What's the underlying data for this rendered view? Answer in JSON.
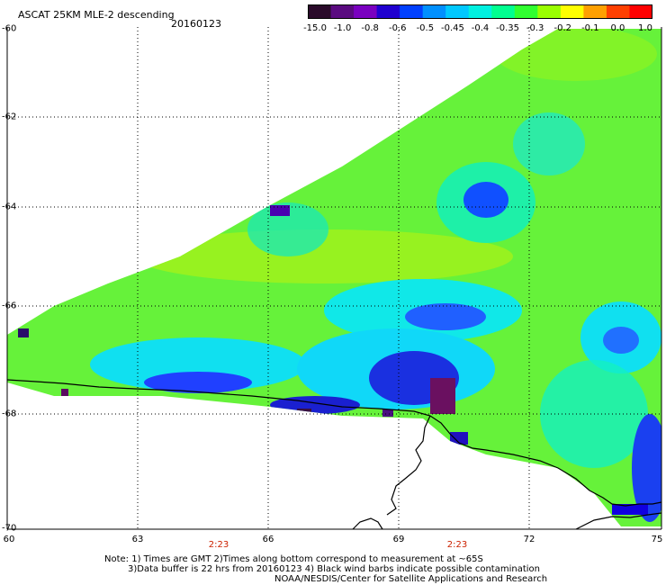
{
  "header": {
    "title": "ASCAT 25KM MLE-2 descending",
    "date": "20160123"
  },
  "colorbar": {
    "labels": [
      "-15.0",
      "-1.0",
      "-0.8",
      "-0.6",
      "-0.5",
      "-0.45",
      "-0.4",
      "-0.35",
      "-0.3",
      "-0.2",
      "-0.1",
      "0.0",
      "1.0"
    ],
    "colors": [
      "#2a0a2a",
      "#5a0a80",
      "#7a00c0",
      "#2000d0",
      "#0040ff",
      "#0090ff",
      "#00c8ff",
      "#00f0e0",
      "#00ff90",
      "#30ff30",
      "#9aff00",
      "#ffff00",
      "#ffa000",
      "#ff4000",
      "#ff0000"
    ]
  },
  "axes": {
    "lat_labels": [
      "-60",
      "-62",
      "-64",
      "-66",
      "-68",
      "-70"
    ],
    "lon_labels": [
      "60",
      "63",
      "66",
      "69",
      "72",
      "75"
    ]
  },
  "time_labels": [
    "2:23",
    "2:23"
  ],
  "notes": {
    "line1": "Note: 1) Times are GMT 2)Times along bottom correspond to measurement at ~65S",
    "line2": "3)Data buffer is 22 hrs from 20160123 4) Black wind barbs indicate possible contamination",
    "line3": "NOAA/NESDIS/Center for Satellite Applications and Research"
  }
}
